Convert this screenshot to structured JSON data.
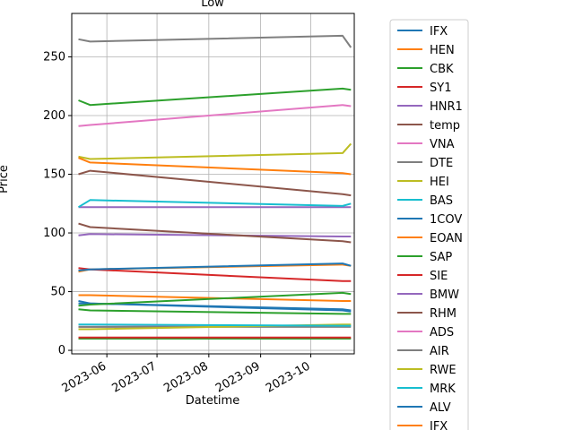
{
  "chart_data": {
    "type": "line",
    "title": "Low",
    "xlabel": "Datetime",
    "ylabel": "Price",
    "x_ticks": [
      "2023-06",
      "2023-07",
      "2023-08",
      "2023-09",
      "2023-10"
    ],
    "y_ticks": [
      0,
      50,
      100,
      150,
      200,
      250
    ],
    "xlim": [
      "2023-05-11",
      "2023-10-27"
    ],
    "ylim": [
      -3,
      287
    ],
    "grid": true,
    "legend_position": "right",
    "series": [
      {
        "name": "IFX",
        "color": "#1f77b4",
        "x": [
          "2023-05-15",
          "2023-05-22",
          "2023-10-20",
          "2023-10-25"
        ],
        "y": [
          42,
          40,
          34,
          33
        ]
      },
      {
        "name": "HEN",
        "color": "#ff7f0e",
        "x": [
          "2023-05-15",
          "2023-05-22",
          "2023-10-20",
          "2023-10-25"
        ],
        "y": [
          67,
          69,
          73,
          72
        ]
      },
      {
        "name": "CBK",
        "color": "#2ca02c",
        "x": [
          "2023-05-15",
          "2023-05-22",
          "2023-10-20",
          "2023-10-25"
        ],
        "y": [
          10,
          10,
          10,
          10
        ]
      },
      {
        "name": "SY1",
        "color": "#d62728",
        "x": [
          "2023-05-15",
          "2023-05-22",
          "2023-10-20",
          "2023-10-25"
        ],
        "y": [
          70,
          69,
          59,
          59
        ]
      },
      {
        "name": "HNR1",
        "color": "#9467bd",
        "x": [
          "2023-05-15",
          "2023-05-22",
          "2023-10-20",
          "2023-10-25"
        ],
        "y": [
          122,
          122,
          122,
          122
        ]
      },
      {
        "name": "temp",
        "color": "#8c564b",
        "x": [
          "2023-05-15",
          "2023-05-22",
          "2023-10-20",
          "2023-10-25"
        ],
        "y": [
          150,
          153,
          133,
          132
        ]
      },
      {
        "name": "VNA",
        "color": "#e377c2",
        "x": [
          "2023-05-15",
          "2023-05-22",
          "2023-10-20",
          "2023-10-25"
        ],
        "y": [
          20,
          20,
          21,
          21
        ]
      },
      {
        "name": "DTE",
        "color": "#7f7f7f",
        "x": [
          "2023-05-15",
          "2023-05-22",
          "2023-10-20",
          "2023-10-25"
        ],
        "y": [
          20,
          20,
          20,
          20
        ]
      },
      {
        "name": "HEI",
        "color": "#bcbd22",
        "x": [
          "2023-05-15",
          "2023-05-22",
          "2023-10-20",
          "2023-10-25"
        ],
        "y": [
          18,
          18,
          22,
          22
        ]
      },
      {
        "name": "BAS",
        "color": "#17becf",
        "x": [
          "2023-05-15",
          "2023-05-22",
          "2023-10-20",
          "2023-10-25"
        ],
        "y": [
          22,
          22,
          21,
          21
        ]
      },
      {
        "name": "1COV",
        "color": "#1f77b4",
        "x": [
          "2023-05-15",
          "2023-05-22",
          "2023-10-20",
          "2023-10-25"
        ],
        "y": [
          40,
          40,
          35,
          34
        ]
      },
      {
        "name": "EOAN",
        "color": "#ff7f0e",
        "x": [
          "2023-05-15",
          "2023-05-22",
          "2023-10-20",
          "2023-10-25"
        ],
        "y": [
          47,
          47,
          42,
          42
        ]
      },
      {
        "name": "SAP",
        "color": "#2ca02c",
        "x": [
          "2023-05-15",
          "2023-05-22",
          "2023-10-20",
          "2023-10-25"
        ],
        "y": [
          213,
          209,
          223,
          222
        ]
      },
      {
        "name": "SIE",
        "color": "#d62728",
        "x": [
          "2023-05-15",
          "2023-05-22",
          "2023-10-20",
          "2023-10-25"
        ],
        "y": [
          11,
          11,
          11,
          11
        ]
      },
      {
        "name": "BMW",
        "color": "#9467bd",
        "x": [
          "2023-05-15",
          "2023-05-22",
          "2023-10-20",
          "2023-10-25"
        ],
        "y": [
          98,
          99,
          97,
          97
        ]
      },
      {
        "name": "RHM",
        "color": "#8c564b",
        "x": [
          "2023-05-15",
          "2023-05-22",
          "2023-10-20",
          "2023-10-25"
        ],
        "y": [
          108,
          105,
          93,
          92
        ]
      },
      {
        "name": "ADS",
        "color": "#e377c2",
        "x": [
          "2023-05-15",
          "2023-05-22",
          "2023-10-20",
          "2023-10-25"
        ],
        "y": [
          191,
          192,
          209,
          208
        ]
      },
      {
        "name": "AIR",
        "color": "#7f7f7f",
        "x": [
          "2023-05-15",
          "2023-05-22",
          "2023-10-20",
          "2023-10-25"
        ],
        "y": [
          265,
          263,
          268,
          258
        ]
      },
      {
        "name": "RWE",
        "color": "#bcbd22",
        "x": [
          "2023-05-15",
          "2023-05-22",
          "2023-10-20",
          "2023-10-25"
        ],
        "y": [
          165,
          163,
          168,
          176
        ]
      },
      {
        "name": "MRK",
        "color": "#17becf",
        "x": [
          "2023-05-15",
          "2023-05-22",
          "2023-10-20",
          "2023-10-25"
        ],
        "y": [
          122,
          128,
          123,
          125
        ]
      },
      {
        "name": "ALV",
        "color": "#1f77b4",
        "x": [
          "2023-05-15",
          "2023-05-22",
          "2023-10-20",
          "2023-10-25"
        ],
        "y": [
          68,
          69,
          74,
          72
        ]
      },
      {
        "name": "IFX",
        "color": "#ff7f0e",
        "x": [
          "2023-05-15",
          "2023-05-22",
          "2023-10-20",
          "2023-10-25"
        ],
        "y": [
          164,
          160,
          151,
          150
        ]
      },
      {
        "name": "",
        "color": "#2ca02c",
        "x": [
          "2023-05-15",
          "2023-05-22",
          "2023-10-20",
          "2023-10-25"
        ],
        "y": [
          35,
          34,
          31,
          31
        ]
      },
      {
        "name": "",
        "color": "#2ca02c",
        "x": [
          "2023-05-15",
          "2023-05-22",
          "2023-10-20",
          "2023-10-25"
        ],
        "y": [
          38,
          39,
          49,
          48
        ]
      }
    ]
  }
}
